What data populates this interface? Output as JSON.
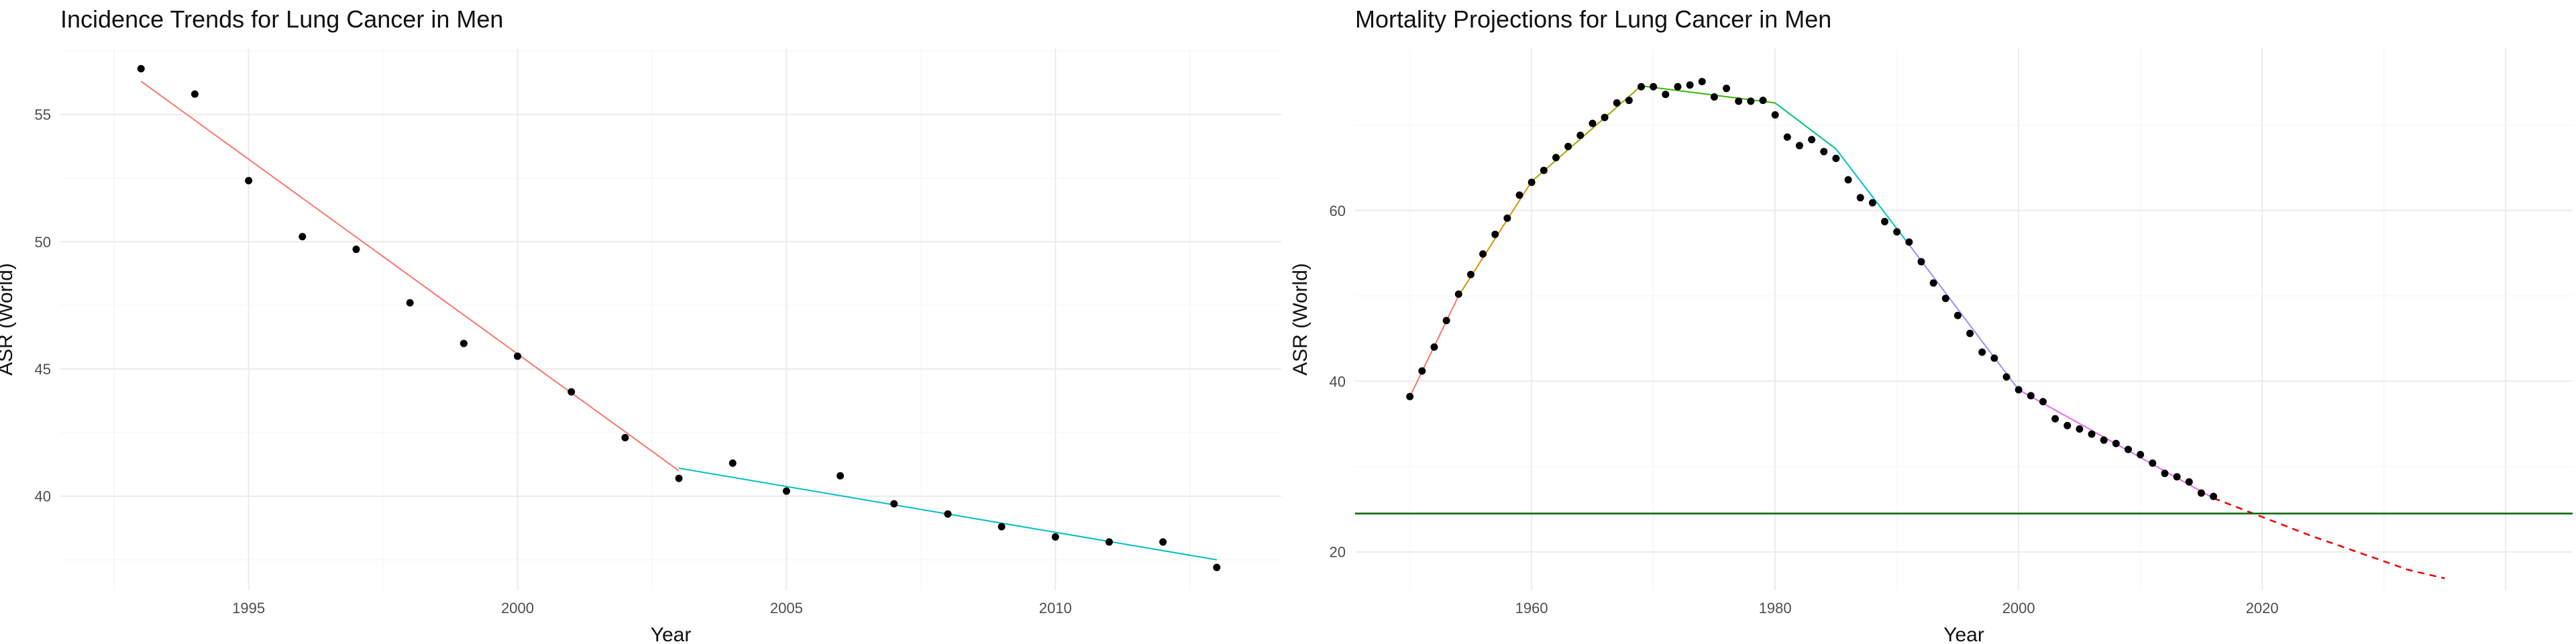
{
  "charts": [
    {
      "title": "Incidence Trends for Lung Cancer in Men",
      "xlabel": "Year",
      "ylabel": "ASR (World)",
      "chart_data": {
        "type": "scatter",
        "title": "Incidence Trends for Lung Cancer in Men",
        "xlabel": "Year",
        "ylabel": "ASR (World)",
        "xlim": [
          1991.5,
          2014.2
        ],
        "ylim": [
          36.3,
          57.6
        ],
        "xticks": [
          1995,
          2000,
          2005,
          2010
        ],
        "yticks": [
          40,
          45,
          50,
          55
        ],
        "grid": true,
        "legend": "none",
        "points": {
          "x": [
            1993,
            1994,
            1995,
            1996,
            1997,
            1998,
            1999,
            2000,
            2001,
            2002,
            2003,
            2004,
            2005,
            2006,
            2007,
            2008,
            2009,
            2010,
            2011,
            2012,
            2013
          ],
          "y": [
            56.8,
            55.8,
            52.4,
            50.2,
            49.7,
            47.6,
            46.0,
            45.5,
            44.1,
            42.3,
            40.7,
            41.3,
            40.2,
            40.8,
            39.7,
            39.3,
            38.8,
            38.4,
            38.2,
            38.2,
            37.2
          ]
        },
        "series": [
          {
            "color": "#F8766D",
            "style": "solid",
            "x": [
              1993,
              2003
            ],
            "y": [
              56.3,
              41.0
            ]
          },
          {
            "color": "#00BFC4",
            "style": "solid",
            "x": [
              2003,
              2013
            ],
            "y": [
              41.1,
              37.5
            ]
          }
        ]
      }
    },
    {
      "title": "Mortality Projections for Lung Cancer in Men",
      "xlabel": "Year",
      "ylabel": "ASR (World)",
      "chart_data": {
        "type": "line",
        "title": "Mortality Projections for Lung Cancer in Men",
        "xlabel": "Year",
        "ylabel": "ASR (World)",
        "xlim": [
          1945.5,
          2045.5
        ],
        "ylim": [
          15.5,
          79
        ],
        "xticks": [
          1960,
          1980,
          2000,
          2020
        ],
        "yticks": [
          20,
          40,
          60
        ],
        "grid": true,
        "legend": "none",
        "points": {
          "x": [
            1950,
            1951,
            1952,
            1953,
            1954,
            1955,
            1956,
            1957,
            1958,
            1959,
            1960,
            1961,
            1962,
            1963,
            1964,
            1965,
            1966,
            1967,
            1968,
            1969,
            1970,
            1971,
            1972,
            1973,
            1974,
            1975,
            1976,
            1977,
            1978,
            1979,
            1980,
            1981,
            1982,
            1983,
            1984,
            1985,
            1986,
            1987,
            1988,
            1989,
            1990,
            1991,
            1992,
            1993,
            1994,
            1995,
            1996,
            1997,
            1998,
            1999,
            2000,
            2001,
            2002,
            2003,
            2004,
            2005,
            2006,
            2007,
            2008,
            2009,
            2010,
            2011,
            2012,
            2013,
            2014,
            2015,
            2016
          ],
          "y": [
            38.2,
            41.2,
            44.0,
            47.1,
            50.2,
            52.5,
            54.9,
            57.2,
            59.1,
            61.8,
            63.3,
            64.7,
            66.2,
            67.5,
            68.8,
            70.2,
            70.9,
            72.6,
            72.9,
            74.5,
            74.5,
            73.6,
            74.5,
            74.7,
            75.1,
            73.3,
            74.3,
            72.8,
            72.8,
            72.9,
            71.2,
            68.6,
            67.6,
            68.3,
            66.9,
            66.1,
            63.6,
            61.5,
            60.9,
            58.7,
            57.5,
            56.3,
            54.0,
            51.5,
            49.7,
            47.7,
            45.6,
            43.4,
            42.7,
            40.5,
            39.0,
            38.3,
            37.6,
            35.6,
            34.8,
            34.4,
            33.8,
            33.1,
            32.7,
            32.0,
            31.4,
            30.4,
            29.2,
            28.8,
            28.2,
            26.9,
            26.5
          ]
        },
        "series": [
          {
            "color": "#F8766D",
            "style": "solid",
            "x": [
              1950,
              1954
            ],
            "y": [
              38.2,
              50.0
            ]
          },
          {
            "color": "#D89000",
            "style": "solid",
            "x": [
              1954,
              1960
            ],
            "y": [
              50.0,
              63.4
            ]
          },
          {
            "color": "#A3A500",
            "style": "solid",
            "x": [
              1960,
              1969
            ],
            "y": [
              63.4,
              74.6
            ]
          },
          {
            "color": "#39B600",
            "style": "solid",
            "x": [
              1969,
              1980
            ],
            "y": [
              74.6,
              72.6
            ]
          },
          {
            "color": "#00BF7D",
            "style": "solid",
            "x": [
              1980,
              1985
            ],
            "y": [
              72.6,
              67.2
            ]
          },
          {
            "color": "#00BFC4",
            "style": "solid",
            "x": [
              1985,
              1991
            ],
            "y": [
              67.2,
              56.0
            ]
          },
          {
            "color": "#9590FF",
            "style": "solid",
            "x": [
              1991,
              2000
            ],
            "y": [
              56.0,
              39.0
            ]
          },
          {
            "color": "#E76BF3",
            "style": "solid",
            "x": [
              2000,
              2016
            ],
            "y": [
              39.0,
              26.3
            ]
          },
          {
            "color": "#EE0000",
            "style": "dashed",
            "x": [
              2016,
              2018,
              2020,
              2022,
              2024,
              2026,
              2028,
              2030,
              2032,
              2035
            ],
            "y": [
              26.3,
              25.2,
              24.1,
              23.0,
              21.9,
              20.9,
              19.9,
              18.9,
              17.9,
              16.9
            ]
          },
          {
            "color": "#006400",
            "style": "solid",
            "x": [
              1945.5,
              2045.5
            ],
            "y": [
              24.5,
              24.5
            ]
          }
        ]
      }
    }
  ]
}
